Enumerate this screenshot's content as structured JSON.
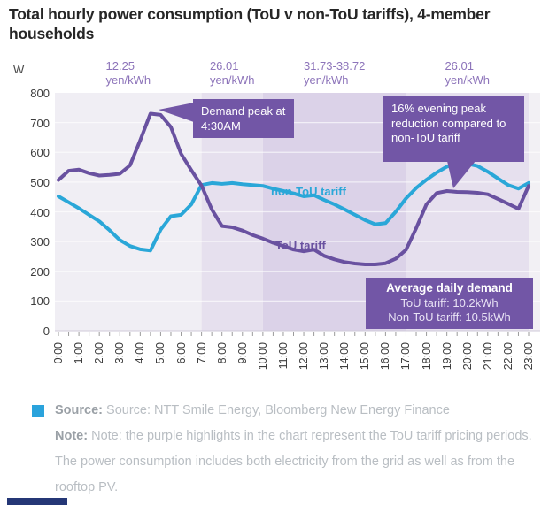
{
  "title": "Total hourly power consumption (ToU v non-ToU tariffs), 4-member households",
  "y_axis_unit": "W",
  "chart_data": {
    "type": "line",
    "x_start_hour": 0,
    "x_step_hours": 0.5,
    "x_tick_labels": [
      "0:00",
      "1:00",
      "2:00",
      "3:00",
      "4:00",
      "5:00",
      "6:00",
      "7:00",
      "8:00",
      "9:00",
      "10:00",
      "11:00",
      "12:00",
      "13:00",
      "14:00",
      "15:00",
      "16:00",
      "17:00",
      "18:00",
      "19:00",
      "20:00",
      "21:00",
      "22:00",
      "23:00"
    ],
    "ylabel": "W",
    "ylim": [
      0,
      800
    ],
    "y_ticks": [
      0,
      100,
      200,
      300,
      400,
      500,
      600,
      700,
      800
    ],
    "grid": "horizontal-white",
    "series": [
      {
        "name": "ToU tariff",
        "color": "#6951a0",
        "values": [
          507,
          538,
          542,
          530,
          522,
          524,
          528,
          556,
          640,
          730,
          726,
          685,
          595,
          540,
          488,
          408,
          352,
          348,
          337,
          322,
          310,
          296,
          285,
          273,
          267,
          273,
          252,
          240,
          231,
          226,
          223,
          223,
          227,
          242,
          272,
          345,
          425,
          463,
          470,
          467,
          466,
          464,
          459,
          443,
          427,
          410,
          487
        ]
      },
      {
        "name": "non-ToU tariff",
        "color": "#2aa7d8",
        "values": [
          452,
          432,
          412,
          390,
          368,
          338,
          305,
          285,
          274,
          270,
          340,
          385,
          390,
          425,
          490,
          497,
          494,
          497,
          493,
          490,
          487,
          478,
          470,
          462,
          452,
          456,
          440,
          425,
          408,
          390,
          372,
          358,
          362,
          400,
          445,
          480,
          508,
          532,
          552,
          560,
          562,
          554,
          535,
          512,
          490,
          478,
          497
        ]
      }
    ],
    "pricing_bands": [
      {
        "rate": "12.25",
        "unit": "yen/kWh",
        "start_hour": 0,
        "end_hour": 7,
        "color": "#f0eef4"
      },
      {
        "rate": "26.01",
        "unit": "yen/kWh",
        "start_hour": 7,
        "end_hour": 10,
        "color": "#e6e0ee"
      },
      {
        "rate": "31.73-38.72",
        "unit": "yen/kWh",
        "start_hour": 10,
        "end_hour": 17,
        "color": "#dbd2e8"
      },
      {
        "rate": "26.01",
        "unit": "yen/kWh",
        "start_hour": 17,
        "end_hour": 23,
        "color": "#e6e0ee"
      }
    ],
    "annotations": {
      "demand_peak": "Demand peak at 4:30AM",
      "evening_reduction": "16% evening peak reduction compared to non-ToU tariff",
      "avg_demand": {
        "title": "Average daily demand",
        "tou": "ToU tariff: 10.2kWh",
        "non_tou": "Non-ToU tariff: 10.5kWh"
      }
    },
    "series_labels": {
      "non_tou": "non-ToU tariff",
      "tou": "ToU tariff"
    }
  },
  "footer": {
    "source_label": "Source:",
    "source_text": " Source: NTT Smile Energy, Bloomberg New Energy Finance",
    "note_label": "Note:",
    "note_text": " Note: the purple highlights in the chart represent the ToU tariff pricing periods. The power consumption includes both electricity from the grid as well as from the rooftop PV."
  },
  "colors": {
    "accent_purple": "#7256a6",
    "line_tou": "#6951a0",
    "line_non_tou": "#2aa7d8",
    "band_light": "#f0eef4",
    "band_mid": "#e6e0ee",
    "band_dark": "#dbd2e8",
    "source_bullet": "#2aa3dc",
    "brand_bar": "#253776"
  }
}
